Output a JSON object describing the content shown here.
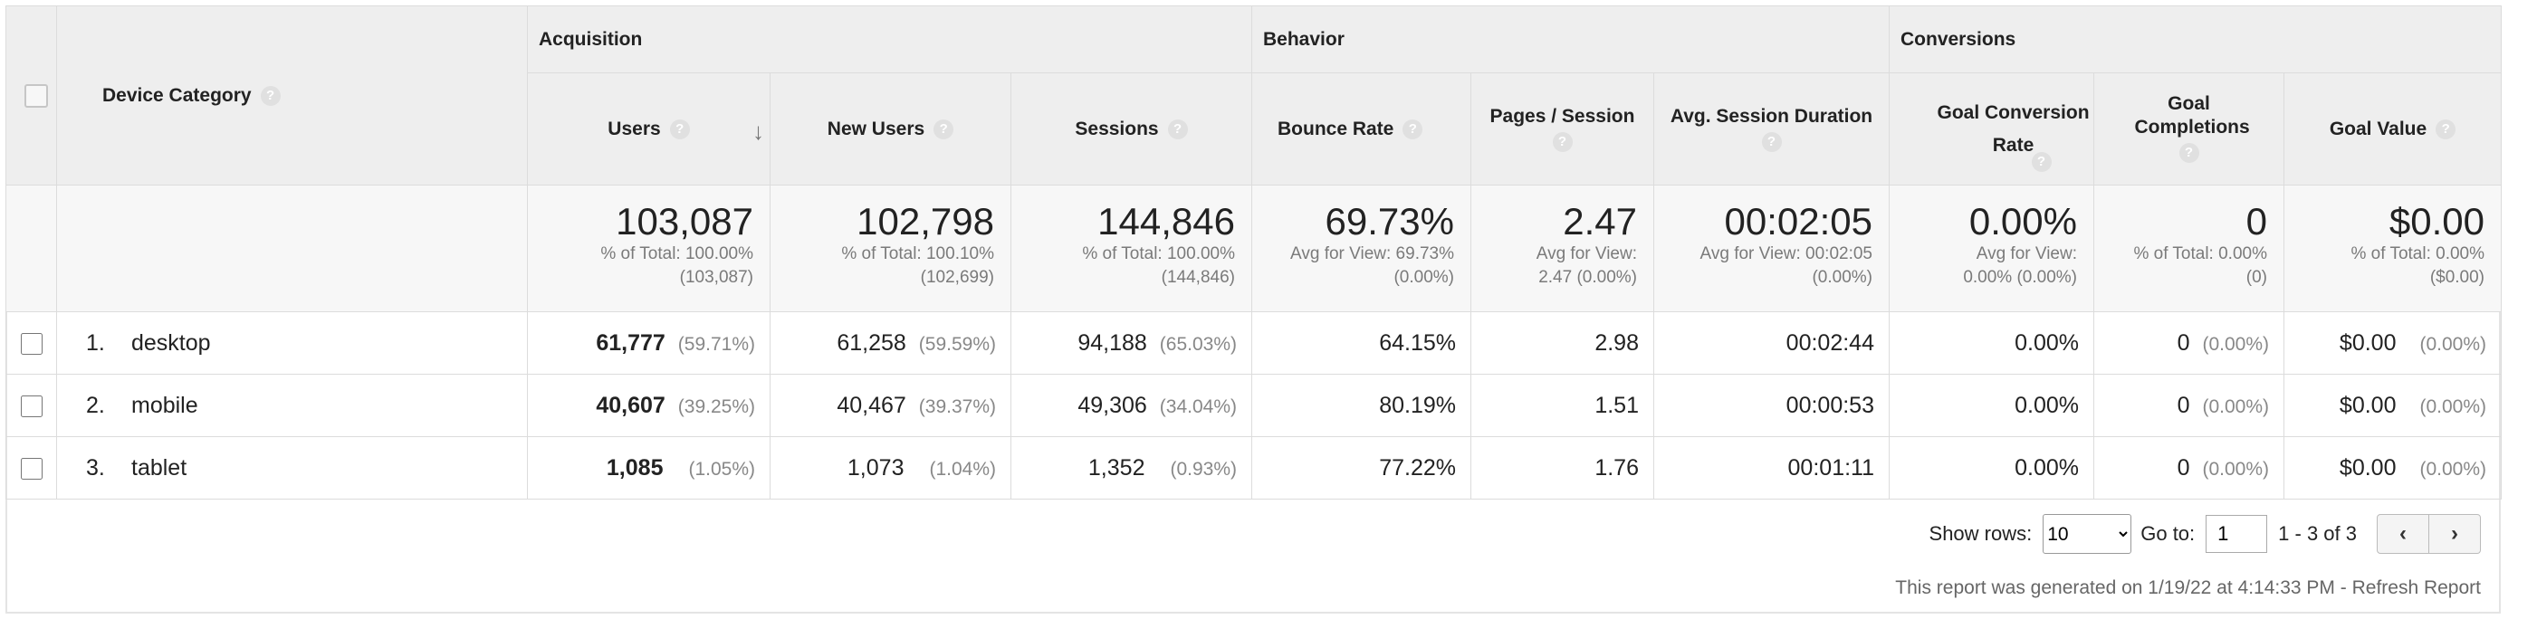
{
  "groups": {
    "acquisition": "Acquisition",
    "behavior": "Behavior",
    "conversions": "Conversions"
  },
  "columns": {
    "device": "Device Category",
    "users": "Users",
    "new_users": "New Users",
    "sessions": "Sessions",
    "bounce_rate": "Bounce Rate",
    "pages_session": "Pages / Session",
    "avg_duration": "Avg. Session Duration",
    "goal_conv_rate": "Goal Conversion Rate",
    "goal_completions": "Goal Completions",
    "goal_value": "Goal Value"
  },
  "totals": {
    "users": {
      "value": "103,087",
      "sub1": "% of Total: 100.00%",
      "sub2": "(103,087)"
    },
    "new_users": {
      "value": "102,798",
      "sub1": "% of Total: 100.10%",
      "sub2": "(102,699)"
    },
    "sessions": {
      "value": "144,846",
      "sub1": "% of Total: 100.00%",
      "sub2": "(144,846)"
    },
    "bounce_rate": {
      "value": "69.73%",
      "sub1": "Avg for View: 69.73%",
      "sub2": "(0.00%)"
    },
    "pages_session": {
      "value": "2.47",
      "sub1": "Avg for View:",
      "sub2": "2.47 (0.00%)"
    },
    "avg_duration": {
      "value": "00:02:05",
      "sub1": "Avg for View: 00:02:05",
      "sub2": "(0.00%)"
    },
    "goal_conv_rate": {
      "value": "0.00%",
      "sub1": "Avg for View:",
      "sub2": "0.00% (0.00%)"
    },
    "goal_completions": {
      "value": "0",
      "sub1": "% of Total: 0.00%",
      "sub2": "(0)"
    },
    "goal_value": {
      "value": "$0.00",
      "sub1": "% of Total: 0.00%",
      "sub2": "($0.00)"
    }
  },
  "rows": [
    {
      "num": "1.",
      "device": "desktop",
      "users": "61,777",
      "users_pct": "(59.71%)",
      "new_users": "61,258",
      "new_users_pct": "(59.59%)",
      "sessions": "94,188",
      "sessions_pct": "(65.03%)",
      "bounce_rate": "64.15%",
      "pages_session": "2.98",
      "avg_duration": "00:02:44",
      "goal_conv_rate": "0.00%",
      "goal_completions": "0",
      "goal_completions_pct": "(0.00%)",
      "goal_value": "$0.00",
      "goal_value_pct": "(0.00%)"
    },
    {
      "num": "2.",
      "device": "mobile",
      "users": "40,607",
      "users_pct": "(39.25%)",
      "new_users": "40,467",
      "new_users_pct": "(39.37%)",
      "sessions": "49,306",
      "sessions_pct": "(34.04%)",
      "bounce_rate": "80.19%",
      "pages_session": "1.51",
      "avg_duration": "00:00:53",
      "goal_conv_rate": "0.00%",
      "goal_completions": "0",
      "goal_completions_pct": "(0.00%)",
      "goal_value": "$0.00",
      "goal_value_pct": "(0.00%)"
    },
    {
      "num": "3.",
      "device": "tablet",
      "users": "1,085",
      "users_pct": "(1.05%)",
      "new_users": "1,073",
      "new_users_pct": "(1.04%)",
      "sessions": "1,352",
      "sessions_pct": "(0.93%)",
      "bounce_rate": "77.22%",
      "pages_session": "1.76",
      "avg_duration": "00:01:11",
      "goal_conv_rate": "0.00%",
      "goal_completions": "0",
      "goal_completions_pct": "(0.00%)",
      "goal_value": "$0.00",
      "goal_value_pct": "(0.00%)"
    }
  ],
  "pager": {
    "show_rows_label": "Show rows:",
    "show_rows_value": "10",
    "goto_label": "Go to:",
    "goto_value": "1",
    "range": "1 - 3 of 3"
  },
  "footer": {
    "generated": "This report was generated on 1/19/22 at 4:14:33 PM - ",
    "refresh": "Refresh Report"
  },
  "icons": {
    "help": "question-circle",
    "sort": "arrow-down",
    "prev": "chevron-left",
    "next": "chevron-right"
  }
}
